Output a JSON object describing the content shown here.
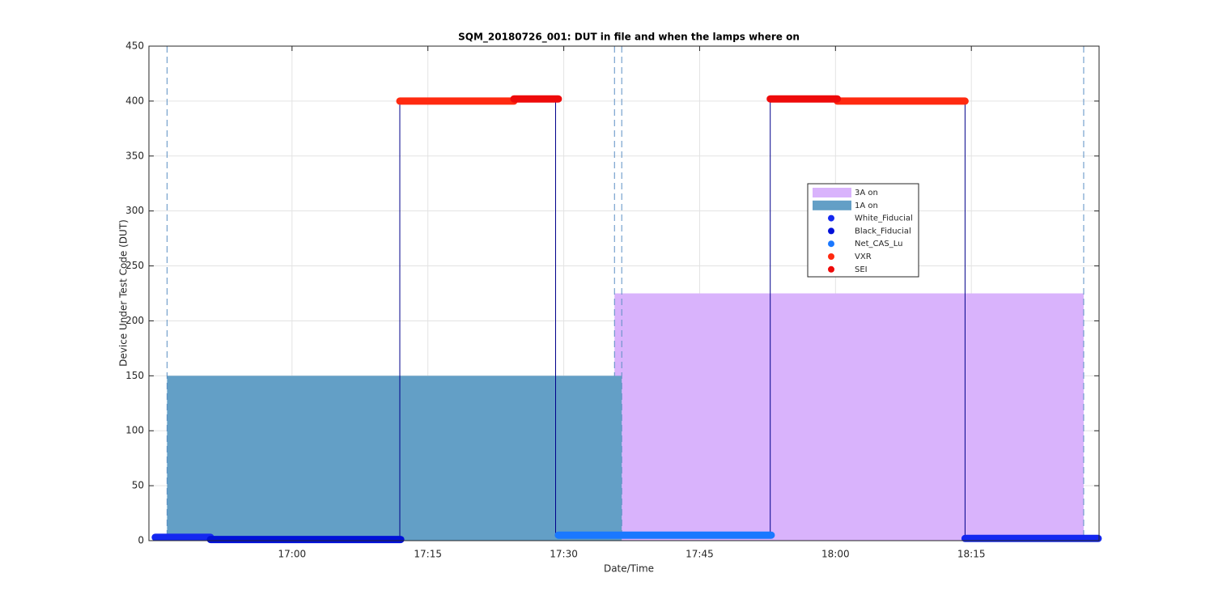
{
  "chart_data": {
    "type": "line",
    "title": "SQM_20180726_001: DUT in file and when the lamps where on",
    "x_label": "Date/Time",
    "y_label": "Device Under Test Code (DUT)",
    "xlim": [
      1004.2,
      1109.1
    ],
    "ylim": [
      0,
      450
    ],
    "xticks": [
      {
        "value": 1020,
        "label": "17:00"
      },
      {
        "value": 1035,
        "label": "17:15"
      },
      {
        "value": 1050,
        "label": "17:30"
      },
      {
        "value": 1065,
        "label": "17:45"
      },
      {
        "value": 1080,
        "label": "18:00"
      },
      {
        "value": 1095,
        "label": "18:15"
      }
    ],
    "yticks": [
      0,
      50,
      100,
      150,
      200,
      250,
      300,
      350,
      400,
      450
    ],
    "grid": true,
    "areas": [
      {
        "name": "3A on",
        "color": "#d9b3fc",
        "x": [
          1055.6,
          1107.4
        ],
        "value": 225
      },
      {
        "name": "1A on",
        "color": "#639fc6",
        "x": [
          1006.2,
          1056.4
        ],
        "value": 150
      }
    ],
    "dut_line": {
      "color": "#00008b",
      "x": [
        1004.9,
        1031.9,
        1031.9,
        1049.1,
        1049.1,
        1072.8,
        1072.8,
        1094.3,
        1094.3,
        1109.0
      ],
      "values": [
        2,
        2,
        400,
        400,
        5,
        5,
        400,
        400,
        2,
        2
      ]
    },
    "series": [
      {
        "name": "White_Fiducial",
        "color": "#1428f0",
        "x": [
          1004.9,
          1011.0,
          null,
          1094.3,
          1109.0
        ],
        "values": [
          3,
          3,
          null,
          2,
          2
        ]
      },
      {
        "name": "Black_Fiducial",
        "color": "#0010d8",
        "x": [
          1011.0,
          1032.0
        ],
        "values": [
          1,
          1
        ]
      },
      {
        "name": "Net_CAS_Lu",
        "color": "#1a78ff",
        "x": [
          1049.4,
          1072.9
        ],
        "values": [
          5,
          5
        ]
      },
      {
        "name": "VXR",
        "color": "#ff2a10",
        "x": [
          1031.9,
          1044.5,
          null,
          1080.2,
          1094.3
        ],
        "values": [
          400,
          400,
          null,
          400,
          400
        ]
      },
      {
        "name": "SEI",
        "color": "#ee0a0a",
        "x": [
          1044.5,
          1049.4,
          null,
          1072.8,
          1080.2
        ],
        "values": [
          402,
          402,
          null,
          402,
          402
        ]
      }
    ]
  }
}
